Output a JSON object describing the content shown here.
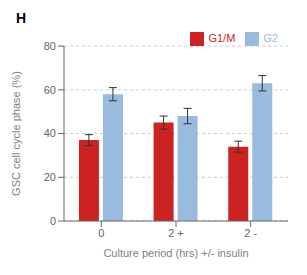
{
  "chart_data": {
    "type": "bar",
    "title": "H",
    "categories": [
      "0",
      "2 +",
      "2 -"
    ],
    "series": [
      {
        "name": "G1/M",
        "color": "#cc2222",
        "values": [
          37,
          45,
          34
        ],
        "errors": [
          2.5,
          3.0,
          2.5
        ]
      },
      {
        "name": "G2",
        "color": "#99bbdd",
        "values": [
          58,
          48,
          63
        ],
        "errors": [
          3.0,
          3.5,
          3.5
        ]
      }
    ],
    "xlabel": "Culture period (hrs) +/- insulin",
    "ylabel": "GSC cell cycle phase (%)",
    "ylim": [
      0,
      80
    ],
    "yticks": [
      0,
      20,
      40,
      60,
      80
    ],
    "grid": true,
    "legend": "upper right"
  }
}
